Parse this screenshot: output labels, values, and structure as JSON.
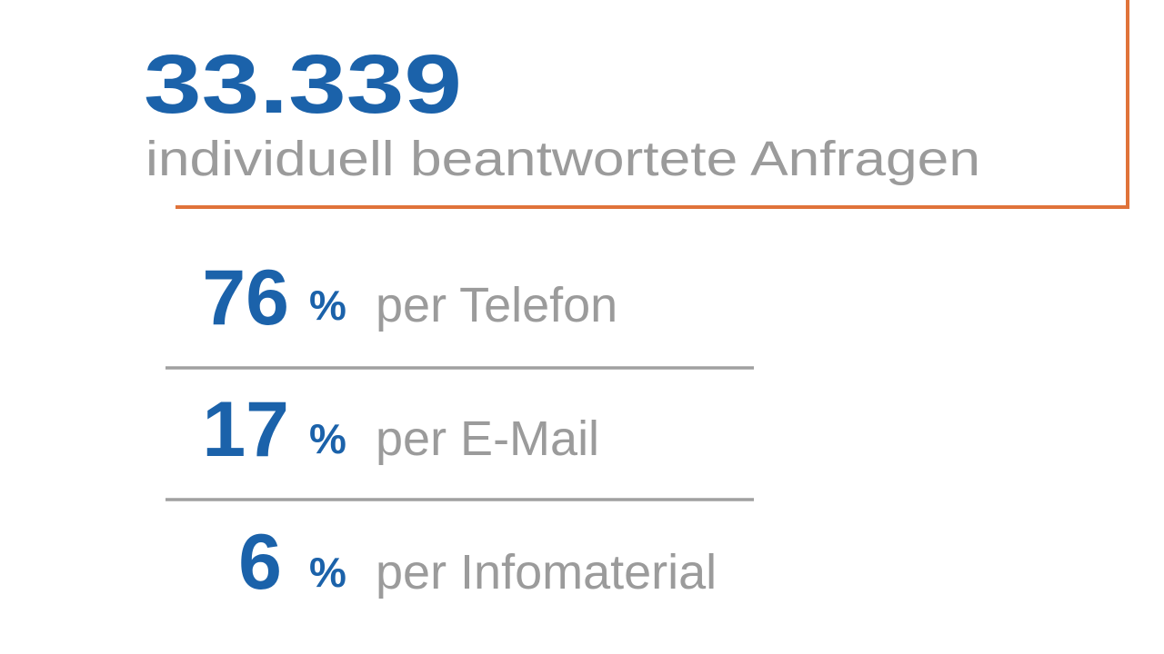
{
  "headline": {
    "value": "33.339",
    "label": "individuell beantwortete Anfragen"
  },
  "items": [
    {
      "value": "76",
      "unit": "%",
      "label": "per Telefon"
    },
    {
      "value": "17",
      "unit": "%",
      "label": "per E-Mail"
    },
    {
      "value": "6",
      "unit": "%",
      "label": "per Infomaterial"
    }
  ]
}
